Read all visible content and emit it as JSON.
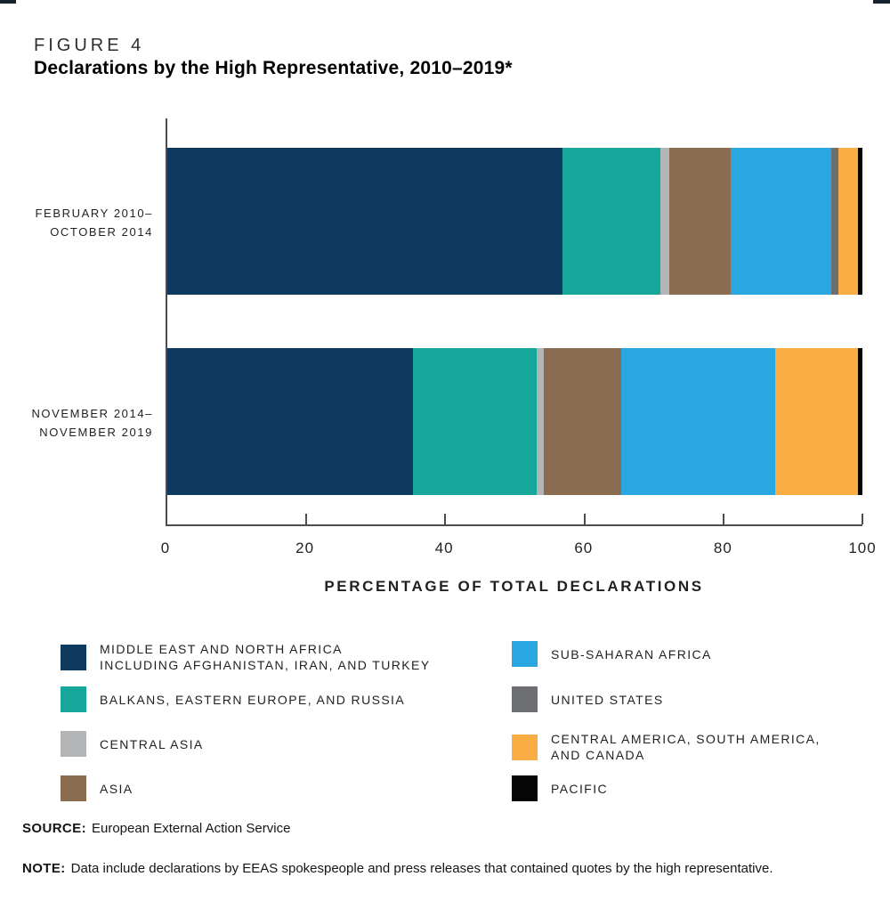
{
  "header": {
    "figure_label": "FIGURE 4"
  },
  "chart_data": {
    "type": "bar",
    "stacked": true,
    "orientation": "horizontal",
    "title": "Declarations by the High Representative, 2010–2019*",
    "xlabel": "PERCENTAGE OF TOTAL DECLARATIONS",
    "xlim": [
      0,
      100
    ],
    "x_ticks": [
      0,
      20,
      40,
      60,
      80,
      100
    ],
    "grid": false,
    "legend_position": "bottom",
    "categories": [
      [
        "FEBRUARY 2010–",
        "OCTOBER 2014"
      ],
      [
        "NOVEMBER 2014–",
        "NOVEMBER 2019"
      ]
    ],
    "series": [
      {
        "name": "MIDDLE EAST AND NORTH AFRICA INCLUDING AFGHANISTAN, IRAN, AND TURKEY",
        "color": "#0d3a5e",
        "values": [
          56.8,
          35.3
        ]
      },
      {
        "name": "BALKANS, EASTERN EUROPE, AND RUSSIA",
        "color": "#16a69a",
        "values": [
          14.2,
          17.8
        ]
      },
      {
        "name": "CENTRAL ASIA",
        "color": "#b2b4b6",
        "values": [
          1.2,
          1.1
        ]
      },
      {
        "name": "ASIA",
        "color": "#8a6c51",
        "values": [
          8.9,
          11.1
        ]
      },
      {
        "name": "SUB-SAHARAN AFRICA",
        "color": "#29a7e0",
        "values": [
          14.4,
          22.1
        ]
      },
      {
        "name": "UNITED STATES",
        "color": "#6d6e71",
        "values": [
          1.0,
          0
        ]
      },
      {
        "name": "CENTRAL AMERICA, SOUTH AMERICA, AND CANADA",
        "color": "#faad42",
        "values": [
          2.9,
          12.0
        ]
      },
      {
        "name": "PACIFIC",
        "color": "#050505",
        "values": [
          0.6,
          0.6
        ]
      }
    ]
  },
  "legend": {
    "left": [
      {
        "lines": [
          "MIDDLE EAST AND NORTH AFRICA",
          "INCLUDING AFGHANISTAN, IRAN, AND TURKEY"
        ],
        "color": "#0d3a5e"
      },
      {
        "lines": [
          "BALKANS, EASTERN EUROPE, AND RUSSIA"
        ],
        "color": "#16a69a"
      },
      {
        "lines": [
          "CENTRAL ASIA"
        ],
        "color": "#b2b4b6"
      },
      {
        "lines": [
          "ASIA"
        ],
        "color": "#8a6c51"
      }
    ],
    "right": [
      {
        "lines": [
          "SUB-SAHARAN AFRICA"
        ],
        "color": "#29a7e0"
      },
      {
        "lines": [
          "UNITED STATES"
        ],
        "color": "#6d6e71"
      },
      {
        "lines": [
          "CENTRAL AMERICA, SOUTH AMERICA,",
          "AND CANADA"
        ],
        "color": "#faad42"
      },
      {
        "lines": [
          "PACIFIC"
        ],
        "color": "#050505"
      }
    ]
  },
  "footer": {
    "source_label": "SOURCE:",
    "source_text": "European External Action Service",
    "note_label": "NOTE:",
    "note_text": "Data include declarations by EEAS spokespeople and press releases that contained quotes by the high representative."
  }
}
